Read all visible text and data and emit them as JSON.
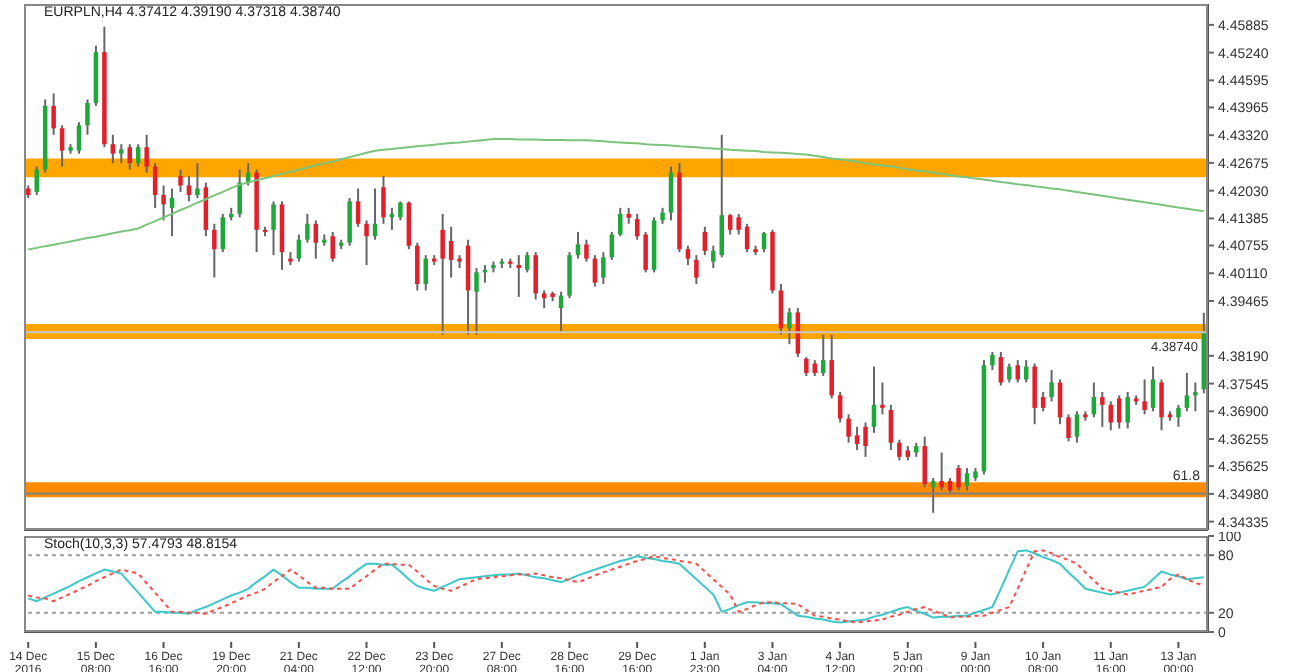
{
  "chart_data": [
    {
      "type": "candlestick",
      "title": "EURPLN,H4  4.37412 4.39190 4.37318 4.38740",
      "tick_labels": "y",
      "categories": [
        null,
        null,
        null,
        null,
        null,
        null,
        null,
        null,
        null,
        null,
        null,
        null,
        null,
        null,
        null,
        null,
        null,
        null,
        null,
        null,
        null,
        null,
        null,
        null,
        null,
        null,
        null,
        null,
        null,
        null,
        null,
        null,
        null,
        null,
        null,
        null,
        null,
        null,
        null,
        null,
        null,
        null,
        null,
        null,
        null,
        null,
        null,
        null,
        null,
        null,
        null,
        null,
        null,
        null,
        null,
        null,
        null,
        null,
        null,
        null,
        null,
        null,
        null,
        null,
        null,
        null,
        null,
        null,
        null,
        null,
        null,
        null,
        null,
        null,
        null,
        null,
        null,
        null,
        null,
        null,
        null,
        null,
        null,
        null,
        null,
        null,
        null,
        null,
        null,
        null,
        null,
        null,
        null,
        null,
        null,
        null,
        null,
        null,
        null,
        null,
        null,
        null,
        null,
        null,
        null,
        null,
        null,
        null,
        null,
        null,
        null,
        null,
        null,
        null,
        null,
        null,
        null,
        null,
        null,
        null,
        null,
        null,
        null,
        null,
        null,
        null,
        null,
        null,
        null,
        null,
        null,
        null,
        null,
        null,
        null,
        null,
        null,
        null,
        null,
        null
      ],
      "ohlc": [
        [
          4.4208,
          4.4215,
          4.4186,
          4.4193
        ],
        [
          4.42,
          4.4259,
          4.4193,
          4.4252
        ],
        [
          4.4252,
          4.4415,
          4.4245,
          4.44
        ],
        [
          4.44,
          4.4429,
          4.4333,
          4.4348
        ],
        [
          4.4348,
          4.4355,
          4.4259,
          4.4296
        ],
        [
          4.4296,
          4.4311,
          4.4289,
          4.4304
        ],
        [
          4.4296,
          4.4362,
          4.4289,
          4.4355
        ],
        [
          4.4355,
          4.4415,
          4.4333,
          4.4407
        ],
        [
          4.4407,
          4.454,
          4.44,
          4.4525
        ],
        [
          4.4525,
          4.4584,
          4.4304,
          4.4311
        ],
        [
          4.4311,
          4.4333,
          4.4267,
          4.4289
        ],
        [
          4.4289,
          4.4311,
          4.4267,
          4.4299
        ],
        [
          4.4304,
          4.4311,
          4.4252,
          4.4267
        ],
        [
          4.4267,
          4.4311,
          4.4259,
          4.4304
        ],
        [
          4.4304,
          4.4333,
          4.4245,
          4.4259
        ],
        [
          4.4259,
          4.4267,
          4.4163,
          4.4193
        ],
        [
          4.4193,
          4.4215,
          4.4134,
          4.4171
        ],
        [
          4.4163,
          4.4208,
          4.4097,
          4.4186
        ],
        [
          4.4237,
          4.4252,
          4.42,
          4.4215
        ],
        [
          4.4215,
          4.4237,
          4.4178,
          4.4193
        ],
        [
          4.4193,
          4.4267,
          4.4186,
          4.4208
        ],
        [
          4.4211,
          4.4222,
          4.4097,
          4.4112
        ],
        [
          4.4112,
          4.4126,
          4.4001,
          4.4067
        ],
        [
          4.4067,
          4.4149,
          4.406,
          4.4141
        ],
        [
          4.4141,
          4.4163,
          4.4134,
          4.4149
        ],
        [
          4.4149,
          4.4252,
          4.4141,
          4.4222
        ],
        [
          4.4222,
          4.4267,
          4.4215,
          4.4245
        ],
        [
          4.4245,
          4.4252,
          4.406,
          4.4112
        ],
        [
          4.4112,
          4.4119,
          4.4097,
          4.4107
        ],
        [
          4.4112,
          4.4178,
          4.4053,
          4.4171
        ],
        [
          4.4171,
          4.4178,
          4.4019,
          4.406
        ],
        [
          4.4045,
          4.406,
          4.403,
          4.4038
        ],
        [
          4.4045,
          4.4101,
          4.4038,
          4.4089
        ],
        [
          4.4089,
          4.4149,
          4.4082,
          4.4126
        ],
        [
          4.4126,
          4.4134,
          4.4045,
          4.4082
        ],
        [
          4.4082,
          4.4101,
          4.4075,
          4.4089
        ],
        [
          4.4097,
          4.4107,
          4.4038,
          4.4045
        ],
        [
          4.4075,
          4.4089,
          4.4067,
          4.4082
        ],
        [
          4.4082,
          4.4186,
          4.4075,
          4.4178
        ],
        [
          4.4178,
          4.4208,
          4.4119,
          4.4126
        ],
        [
          4.4126,
          4.4134,
          4.403,
          4.4097
        ],
        [
          4.4097,
          4.4208,
          4.4089,
          4.4126
        ],
        [
          4.4211,
          4.4237,
          4.4126,
          4.4141
        ],
        [
          4.4141,
          4.4163,
          4.4112,
          4.4149
        ],
        [
          4.4141,
          4.4178,
          4.4134,
          4.4175
        ],
        [
          4.4175,
          4.4178,
          4.4067,
          4.4075
        ],
        [
          4.4075,
          4.4082,
          4.3971,
          4.3986
        ],
        [
          4.3986,
          4.4053,
          4.3971,
          4.4045
        ],
        [
          4.4045,
          4.4053,
          4.403,
          4.4038
        ],
        [
          4.4112,
          4.4149,
          4.3868,
          4.4045
        ],
        [
          4.4086,
          4.4119,
          4.4001,
          4.4042
        ],
        [
          4.4045,
          4.4053,
          4.4023,
          4.4038
        ],
        [
          4.4075,
          4.4089,
          4.3868,
          4.3971
        ],
        [
          4.3968,
          4.4023,
          4.3868,
          4.4013
        ],
        [
          4.4013,
          4.403,
          4.3989,
          4.4019
        ],
        [
          4.4023,
          4.4038,
          4.4013,
          4.403
        ],
        [
          4.4033,
          4.4045,
          4.4023,
          4.4038
        ],
        [
          4.4038,
          4.4045,
          4.4023,
          4.4033
        ],
        [
          4.403,
          4.4053,
          4.3956,
          4.4023
        ],
        [
          4.4019,
          4.406,
          4.4013,
          4.4053
        ],
        [
          4.4053,
          4.406,
          4.395,
          4.3964
        ],
        [
          4.3964,
          4.3971,
          4.393,
          4.3953
        ],
        [
          4.3964,
          4.3968,
          4.3946,
          4.3956
        ],
        [
          4.393,
          4.3968,
          4.3876,
          4.3959
        ],
        [
          4.3959,
          4.406,
          4.3953,
          4.4053
        ],
        [
          4.4053,
          4.4107,
          4.4045,
          4.4078
        ],
        [
          4.4078,
          4.4089,
          4.4038,
          4.4045
        ],
        [
          4.4045,
          4.4053,
          4.398,
          4.3989
        ],
        [
          4.4001,
          4.406,
          4.3986,
          4.4048
        ],
        [
          4.4048,
          4.4107,
          4.4042,
          4.4101
        ],
        [
          4.4101,
          4.4163,
          4.4097,
          4.4149
        ],
        [
          4.4149,
          4.4163,
          4.4126,
          4.414
        ],
        [
          4.4137,
          4.4149,
          4.4089,
          4.4097
        ],
        [
          4.4101,
          4.4107,
          4.4013,
          4.4019
        ],
        [
          4.4019,
          4.4141,
          4.4013,
          4.4134
        ],
        [
          4.4134,
          4.4163,
          4.4126,
          4.4152
        ],
        [
          4.4152,
          4.4259,
          4.4134,
          4.4245
        ],
        [
          4.4245,
          4.4267,
          4.406,
          4.4067
        ],
        [
          4.4067,
          4.4075,
          4.403,
          4.4045
        ],
        [
          4.4042,
          4.4053,
          4.3986,
          4.4001
        ],
        [
          4.4107,
          4.4119,
          4.4053,
          4.4063
        ],
        [
          4.4038,
          4.4075,
          4.4023,
          4.4063
        ],
        [
          4.4053,
          4.4333,
          4.4048,
          4.4146
        ],
        [
          4.4146,
          4.4149,
          4.4101,
          4.4112
        ],
        [
          4.4141,
          4.4149,
          4.4101,
          4.4112
        ],
        [
          4.4119,
          4.4126,
          4.406,
          4.4067
        ],
        [
          4.4067,
          4.4075,
          4.4053,
          4.406
        ],
        [
          4.4067,
          4.4107,
          4.406,
          4.4104
        ],
        [
          4.4107,
          4.4112,
          4.3964,
          4.3971
        ],
        [
          4.3971,
          4.3986,
          4.3868,
          4.3883
        ],
        [
          4.3883,
          4.393,
          4.3846,
          4.392
        ],
        [
          4.392,
          4.393,
          4.3816,
          4.3824
        ],
        [
          4.3812,
          4.3816,
          4.3772,
          4.3779
        ],
        [
          4.3801,
          4.3809,
          4.3772,
          4.3779
        ],
        [
          4.3779,
          4.3868,
          4.3772,
          4.3809
        ],
        [
          4.3809,
          4.3868,
          4.372,
          4.3727
        ],
        [
          4.3727,
          4.3735,
          4.3664,
          4.3673
        ],
        [
          4.3673,
          4.3683,
          4.3617,
          4.3631
        ],
        [
          4.3634,
          4.3654,
          4.36,
          4.3614
        ],
        [
          4.3654,
          4.3664,
          4.3584,
          4.3609
        ],
        [
          4.3654,
          4.3794,
          4.364,
          4.3705
        ],
        [
          4.3705,
          4.3757,
          4.3683,
          4.3698
        ],
        [
          4.3693,
          4.3705,
          4.36,
          4.3617
        ],
        [
          4.3617,
          4.3624,
          4.3576,
          4.3584
        ],
        [
          4.3599,
          4.3609,
          4.3576,
          4.3584
        ],
        [
          4.3594,
          4.3617,
          4.3584,
          4.3609
        ],
        [
          4.3609,
          4.3631,
          4.3513,
          4.3521
        ],
        [
          4.3513,
          4.3535,
          4.3454,
          4.3528
        ],
        [
          4.3528,
          4.3594,
          4.3506,
          4.3513
        ],
        [
          4.3528,
          4.3535,
          4.3498,
          4.3506
        ],
        [
          4.3558,
          4.3565,
          4.3506,
          4.3513
        ],
        [
          4.3516,
          4.3558,
          4.3506,
          4.3546
        ],
        [
          4.3535,
          4.3558,
          4.3528,
          4.355
        ],
        [
          4.355,
          4.3809,
          4.3543,
          4.3797
        ],
        [
          4.3797,
          4.3828,
          4.3786,
          4.3821
        ],
        [
          4.3816,
          4.3828,
          4.375,
          4.3757
        ],
        [
          4.3764,
          4.3801,
          4.3757,
          4.3794
        ],
        [
          4.3797,
          4.3809,
          4.3757,
          4.3764
        ],
        [
          4.3764,
          4.3809,
          4.3757,
          4.3794
        ],
        [
          4.3794,
          4.3801,
          4.366,
          4.3698
        ],
        [
          4.3723,
          4.3735,
          4.369,
          4.3698
        ],
        [
          4.3723,
          4.3786,
          4.3713,
          4.3757
        ],
        [
          4.3757,
          4.3764,
          4.366,
          4.3676
        ],
        [
          4.3676,
          4.3683,
          4.362,
          4.3628
        ],
        [
          4.3631,
          4.369,
          4.3617,
          4.3683
        ],
        [
          4.3683,
          4.369,
          4.3668,
          4.3676
        ],
        [
          4.3683,
          4.3757,
          4.3676,
          4.3723
        ],
        [
          4.3723,
          4.3735,
          4.3654,
          4.3705
        ],
        [
          4.3705,
          4.3713,
          4.3646,
          4.3664
        ],
        [
          4.372,
          4.3727,
          4.365,
          4.3664
        ],
        [
          4.3664,
          4.3735,
          4.365,
          4.3723
        ],
        [
          4.372,
          4.3727,
          4.3705,
          4.3713
        ],
        [
          4.3713,
          4.3764,
          4.3683,
          4.3693
        ],
        [
          4.3698,
          4.3794,
          4.369,
          4.3764
        ],
        [
          4.3757,
          4.3764,
          4.3646,
          4.3676
        ],
        [
          4.3683,
          4.369,
          4.3668,
          4.3676
        ],
        [
          4.3676,
          4.3705,
          4.3654,
          4.3698
        ],
        [
          4.3698,
          4.3779,
          4.369,
          4.3727
        ],
        [
          4.3727,
          4.3757,
          4.369,
          4.3735
        ],
        [
          4.37412,
          4.3919,
          4.37318,
          4.3874
        ]
      ],
      "series": [
        {
          "type": "line",
          "color": "#7cc47c",
          "values": [
            4.4066,
            4.407,
            4.4074,
            4.4077,
            4.4081,
            4.4085,
            4.4089,
            4.4093,
            4.4096,
            4.41,
            4.4104,
            4.4108,
            4.4111,
            4.4115,
            4.4124,
            4.4132,
            4.4141,
            4.4149,
            4.4158,
            4.4166,
            4.4175,
            4.4183,
            4.4192,
            4.42,
            4.4209,
            4.4217,
            4.4222,
            4.4227,
            4.4232,
            4.4237,
            4.4242,
            4.4247,
            4.4252,
            4.4257,
            4.4262,
            4.4267,
            4.4271,
            4.4276,
            4.4281,
            4.4286,
            4.4291,
            4.4296,
            4.4298,
            4.43,
            4.4302,
            4.4304,
            4.4306,
            4.4308,
            4.431,
            4.4312,
            4.4314,
            4.4315,
            4.4317,
            4.4319,
            4.4321,
            4.4323,
            4.4323,
            4.4323,
            4.4322,
            4.4322,
            4.4322,
            4.4321,
            4.4321,
            4.4321,
            4.432,
            4.432,
            4.432,
            4.4319,
            4.4318,
            4.4316,
            4.4315,
            4.4314,
            4.4313,
            4.4311,
            4.431,
            4.4309,
            4.4308,
            4.4306,
            4.4305,
            4.4304,
            4.4302,
            4.4301,
            4.43,
            4.4298,
            4.4297,
            4.4296,
            4.4295,
            4.4293,
            4.4292,
            4.4291,
            4.429,
            4.4288,
            4.4287,
            4.4284,
            4.4281,
            4.4278,
            4.4276,
            4.4273,
            4.427,
            4.4267,
            4.4264,
            4.4262,
            4.4259,
            4.4256,
            4.4253,
            4.425,
            4.4248,
            4.4245,
            4.4242,
            4.4239,
            4.4236,
            4.4234,
            4.4231,
            4.4229,
            4.4226,
            4.4223,
            4.4221,
            4.4218,
            4.4216,
            4.4213,
            4.4211,
            4.4208,
            4.4206,
            4.4203,
            4.42,
            4.4197,
            4.4194,
            4.4191,
            4.4188,
            4.4185,
            4.4182,
            4.4179,
            4.4176,
            4.4173,
            4.417,
            4.4167,
            4.4164,
            4.4161,
            4.4158,
            4.4155
          ]
        }
      ],
      "ylim": [
        4.3414,
        4.4637
      ],
      "yticks": [
        {
          "value": 4.45885,
          "label": "4.45885"
        },
        {
          "value": 4.4524,
          "label": "4.45240"
        },
        {
          "value": 4.44595,
          "label": "4.44595"
        },
        {
          "value": 4.43965,
          "label": "4.43965"
        },
        {
          "value": 4.4332,
          "label": "4.43320"
        },
        {
          "value": 4.42675,
          "label": "4.42675"
        },
        {
          "value": 4.4203,
          "label": "4.42030"
        },
        {
          "value": 4.41385,
          "label": "4.41385"
        },
        {
          "value": 4.40755,
          "label": "4.40755"
        },
        {
          "value": 4.4011,
          "label": "4.40110"
        },
        {
          "value": 4.39465,
          "label": "4.39465"
        },
        {
          "value": 4.3819,
          "label": "4.38190"
        },
        {
          "value": 4.37545,
          "label": "4.37545"
        },
        {
          "value": 4.369,
          "label": "4.36900"
        },
        {
          "value": 4.36255,
          "label": "4.36255"
        },
        {
          "value": 4.35625,
          "label": "4.35625"
        },
        {
          "value": 4.3498,
          "label": "4.34980"
        },
        {
          "value": 4.34335,
          "label": "4.34335"
        }
      ],
      "bands": [
        {
          "axis": "y",
          "from": 4.4234,
          "to": 4.4278,
          "color": "#ffa500"
        },
        {
          "axis": "y",
          "from": 4.3858,
          "to": 4.3893,
          "color": "#ffa500"
        },
        {
          "axis": "y",
          "from": 4.349,
          "to": 4.3525,
          "color": "#ff8c00"
        }
      ],
      "ref_lines": [
        {
          "axis": "y",
          "value": 4.3874,
          "label": "4.38740",
          "color": "#c8c8c8"
        },
        {
          "axis": "y",
          "value": 4.3499,
          "color": "#808080"
        }
      ],
      "annotations": [
        {
          "text": "61.8",
          "y": 4.3499
        }
      ]
    },
    {
      "type": "line",
      "title": "Stoch(10,3,3) 57.4793 48.8154",
      "categories": [
        "14 Dec 2016",
        null,
        null,
        null,
        null,
        null,
        null,
        null,
        "15 Dec 08:00",
        null,
        null,
        null,
        null,
        null,
        null,
        null,
        "16 Dec 16:00",
        null,
        null,
        null,
        null,
        null,
        null,
        null,
        "19 Dec 20:00",
        null,
        null,
        null,
        null,
        null,
        null,
        null,
        "21 Dec 04:00",
        null,
        null,
        null,
        null,
        null,
        null,
        null,
        "22 Dec 12:00",
        null,
        null,
        null,
        null,
        null,
        null,
        null,
        "23 Dec 20:00",
        null,
        null,
        null,
        null,
        null,
        null,
        null,
        "27 Dec 08:00",
        null,
        null,
        null,
        null,
        null,
        null,
        null,
        "28 Dec 16:00",
        null,
        null,
        null,
        null,
        null,
        null,
        null,
        "29 Dec 16:00",
        null,
        null,
        null,
        null,
        null,
        null,
        null,
        "1 Jan 23:00",
        null,
        null,
        null,
        null,
        null,
        null,
        null,
        "3 Jan 04:00",
        null,
        null,
        null,
        null,
        null,
        null,
        null,
        "4 Jan 12:00",
        null,
        null,
        null,
        null,
        null,
        null,
        null,
        "5 Jan 20:00",
        null,
        null,
        null,
        null,
        null,
        null,
        null,
        "9 Jan 00:00",
        null,
        null,
        null,
        null,
        null,
        null,
        null,
        "10 Jan 08:00",
        null,
        null,
        null,
        null,
        null,
        null,
        null,
        "11 Jan 16:00",
        null,
        null,
        null,
        null,
        null,
        null,
        null,
        "13 Jan 00:00",
        null,
        null,
        null
      ],
      "series": [
        {
          "color": "#3cc8c8",
          "line_style": "solid",
          "values": [
            35,
            32,
            36,
            40,
            44,
            48,
            53,
            57,
            61,
            65,
            63,
            61,
            51,
            41,
            31,
            21,
            21,
            20,
            20,
            19,
            23,
            26,
            30,
            34,
            38,
            41,
            45,
            52,
            58,
            65,
            59,
            52,
            46,
            46,
            45,
            45,
            45,
            52,
            58,
            65,
            71,
            71,
            70,
            70,
            63,
            55,
            48,
            45,
            43,
            47,
            51,
            55,
            56,
            57,
            58,
            59,
            60,
            60,
            61,
            59,
            57,
            56,
            54,
            52,
            55,
            59,
            62,
            65,
            68,
            71,
            74,
            76,
            79,
            77,
            76,
            74,
            73,
            71,
            63,
            55,
            47,
            39,
            21,
            24,
            28,
            31,
            31,
            30,
            30,
            29,
            23,
            17,
            16,
            14,
            13,
            11,
            10,
            11,
            12,
            13,
            16,
            18,
            21,
            24,
            26,
            22,
            19,
            15,
            16,
            16,
            17,
            17,
            20,
            23,
            26,
            45,
            65,
            84,
            85,
            82,
            78,
            75,
            71,
            62,
            54,
            45,
            43,
            41,
            39,
            41,
            43,
            45,
            47,
            55,
            63,
            60,
            58,
            55,
            56,
            57
          ]
        },
        {
          "color": "#ff4a4a",
          "line_style": "dotted",
          "values": [
            38,
            36,
            35,
            32,
            36,
            40,
            44,
            48,
            53,
            57,
            61,
            65,
            63,
            61,
            51,
            41,
            31,
            21,
            21,
            20,
            20,
            19,
            23,
            26,
            30,
            34,
            38,
            41,
            45,
            52,
            58,
            65,
            59,
            52,
            46,
            46,
            45,
            45,
            45,
            52,
            58,
            65,
            71,
            71,
            70,
            70,
            63,
            55,
            48,
            45,
            43,
            47,
            51,
            55,
            56,
            57,
            58,
            59,
            60,
            60,
            61,
            59,
            57,
            56,
            54,
            52,
            55,
            59,
            62,
            65,
            68,
            71,
            74,
            76,
            79,
            77,
            76,
            74,
            73,
            71,
            63,
            55,
            47,
            39,
            21,
            24,
            28,
            31,
            31,
            30,
            30,
            29,
            23,
            17,
            16,
            14,
            13,
            11,
            10,
            11,
            12,
            13,
            16,
            18,
            21,
            24,
            26,
            22,
            19,
            15,
            16,
            16,
            17,
            17,
            20,
            23,
            26,
            45,
            65,
            84,
            85,
            82,
            78,
            75,
            71,
            62,
            54,
            45,
            43,
            41,
            39,
            41,
            43,
            45,
            47,
            55,
            60,
            55,
            51,
            49
          ]
        }
      ],
      "ylim": [
        0,
        100
      ],
      "yticks": [
        0,
        20,
        80,
        100
      ],
      "ref_lines": [
        {
          "axis": "y",
          "value": 20,
          "color": "#a0a0a0",
          "line_style": "dotted"
        },
        {
          "axis": "y",
          "value": 80,
          "color": "#a0a0a0",
          "line_style": "dotted"
        }
      ]
    }
  ]
}
